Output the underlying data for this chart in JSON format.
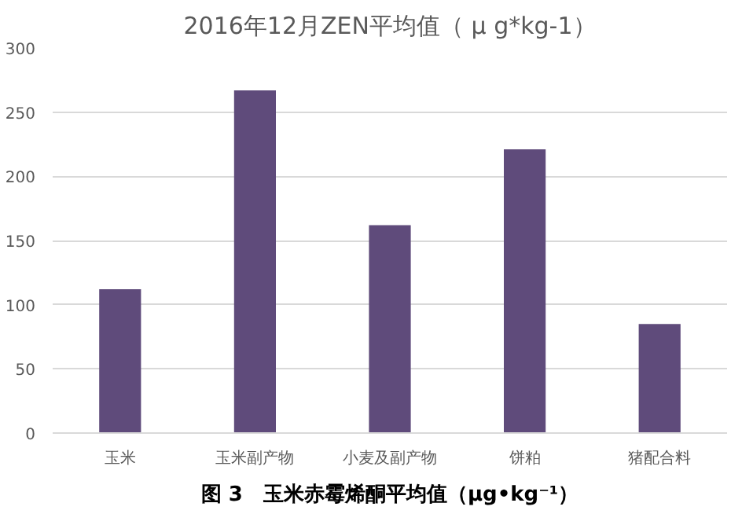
{
  "chart_data": {
    "type": "bar",
    "title": "2016年12月ZEN平均值（ μ g*kg-1）",
    "categories": [
      "玉米",
      "玉米副产物",
      "小麦及副产物",
      "饼粕",
      "猪配合料"
    ],
    "values": [
      112,
      267,
      162,
      221,
      85
    ],
    "color": "#5f4b7b",
    "ylim": [
      0,
      300
    ],
    "yticks": [
      0,
      50,
      100,
      150,
      200,
      250,
      300
    ],
    "grid": "y",
    "annotations": [
      "图 3　玉米赤霉烯酮平均值（μg•kg⁻¹）"
    ]
  }
}
